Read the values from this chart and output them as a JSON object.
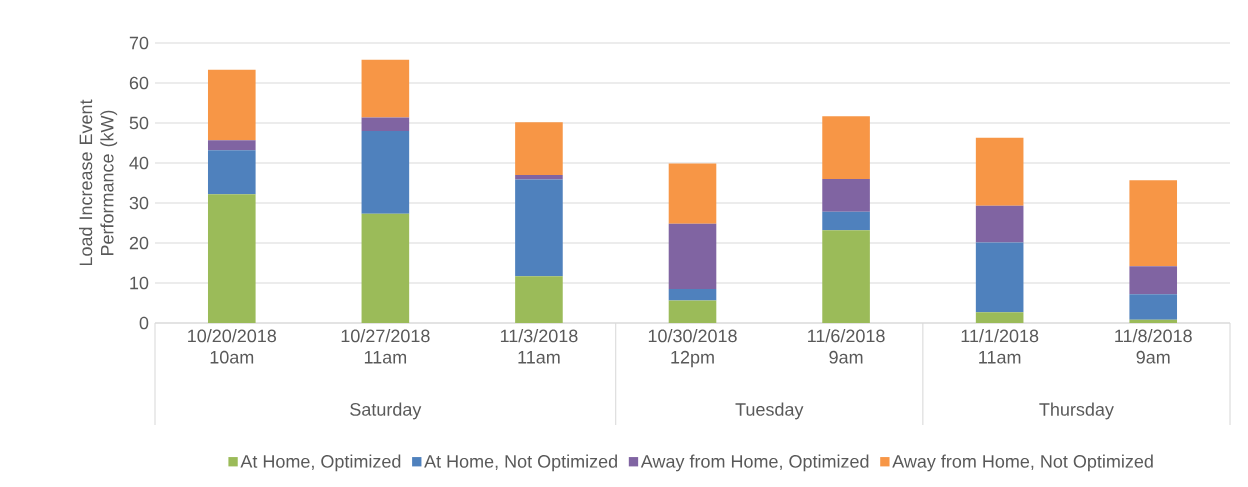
{
  "chart_data": {
    "type": "bar",
    "stacked": true,
    "ylabel": "Load Increase Event Performance (kW)",
    "categories": [
      "10/20/2018 10am",
      "10/27/2018 11am",
      "11/3/2018 11am",
      "10/30/2018 12pm",
      "11/6/2018 9am",
      "11/1/2018 11am",
      "11/8/2018 9am"
    ],
    "series": [
      {
        "name": "At Home, Optimized",
        "color": "#9bbb59",
        "values": [
          32.2,
          27.3,
          11.7,
          5.6,
          23.2,
          2.7,
          0.8
        ]
      },
      {
        "name": "At Home, Not Optimized",
        "color": "#4f81bd",
        "values": [
          11.0,
          20.7,
          24.2,
          2.9,
          4.6,
          17.4,
          6.4
        ]
      },
      {
        "name": "Away from Home, Optimized",
        "color": "#8064a2",
        "values": [
          2.5,
          3.4,
          1.1,
          16.3,
          8.2,
          9.2,
          7.0
        ]
      },
      {
        "name": "Away from Home, Not Optimized",
        "color": "#f79646",
        "values": [
          17.6,
          14.4,
          13.2,
          15.1,
          15.7,
          17.0,
          21.5
        ]
      }
    ],
    "ylim": [
      0,
      70
    ],
    "yticks": [
      0,
      10,
      20,
      30,
      40,
      50,
      60,
      70
    ],
    "grid": "y",
    "legend": "bottom",
    "annotations": [
      "Saturday",
      "Tuesday",
      "Thursday"
    ]
  }
}
